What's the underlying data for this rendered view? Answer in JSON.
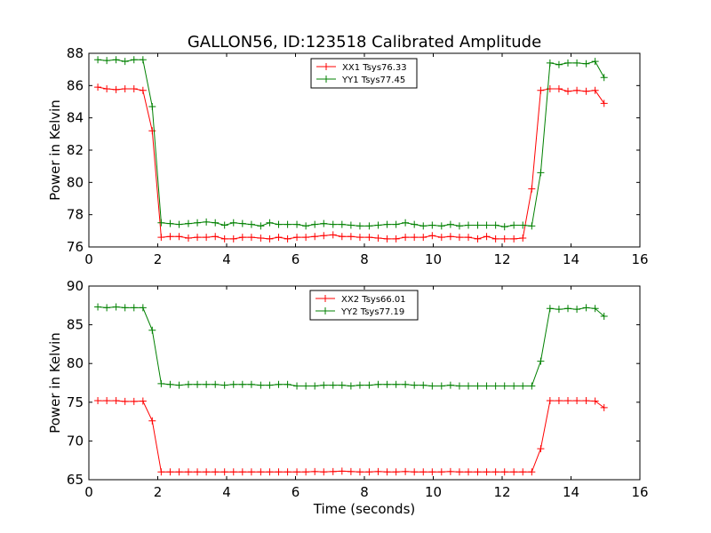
{
  "chart_data": [
    {
      "type": "line",
      "title": "GALLON56, ID:123518 Calibrated Amplitude",
      "xlabel": "",
      "ylabel": "Power in Kelvin",
      "xlim": [
        0,
        16
      ],
      "ylim": [
        76,
        88
      ],
      "xticks": [
        "0",
        "2",
        "4",
        "6",
        "8",
        "10",
        "12",
        "14",
        "16"
      ],
      "yticks": [
        "76",
        "78",
        "80",
        "82",
        "84",
        "86",
        "88"
      ],
      "legend_position": "top-center",
      "x": [
        0.26,
        0.52,
        0.79,
        1.05,
        1.31,
        1.57,
        1.84,
        2.1,
        2.36,
        2.62,
        2.89,
        3.15,
        3.41,
        3.67,
        3.94,
        4.2,
        4.46,
        4.72,
        4.99,
        5.25,
        5.51,
        5.77,
        6.04,
        6.3,
        6.56,
        6.82,
        7.09,
        7.35,
        7.61,
        7.87,
        8.14,
        8.4,
        8.66,
        8.92,
        9.19,
        9.45,
        9.71,
        9.97,
        10.24,
        10.5,
        10.76,
        11.02,
        11.29,
        11.55,
        11.81,
        12.07,
        12.34,
        12.6,
        12.86,
        13.12,
        13.39,
        13.65,
        13.91,
        14.17,
        14.44,
        14.7,
        14.96
      ],
      "series": [
        {
          "name": "XX1 Tsys76.33",
          "color": "#ff0000",
          "values": [
            85.9,
            85.8,
            85.75,
            85.8,
            85.8,
            85.7,
            83.2,
            76.6,
            76.65,
            76.65,
            76.55,
            76.6,
            76.6,
            76.65,
            76.5,
            76.5,
            76.6,
            76.6,
            76.55,
            76.5,
            76.6,
            76.5,
            76.6,
            76.6,
            76.65,
            76.7,
            76.75,
            76.65,
            76.65,
            76.6,
            76.6,
            76.55,
            76.5,
            76.5,
            76.6,
            76.6,
            76.6,
            76.7,
            76.6,
            76.65,
            76.6,
            76.6,
            76.5,
            76.65,
            76.5,
            76.5,
            76.5,
            76.55,
            79.6,
            85.7,
            85.8,
            85.8,
            85.65,
            85.7,
            85.65,
            85.7,
            84.9
          ]
        },
        {
          "name": "YY1 Tsys77.45",
          "color": "#008000",
          "values": [
            87.6,
            87.55,
            87.6,
            87.5,
            87.6,
            87.6,
            84.7,
            77.5,
            77.45,
            77.4,
            77.45,
            77.5,
            77.55,
            77.5,
            77.35,
            77.5,
            77.45,
            77.4,
            77.3,
            77.5,
            77.4,
            77.4,
            77.4,
            77.3,
            77.4,
            77.45,
            77.4,
            77.4,
            77.35,
            77.3,
            77.3,
            77.35,
            77.4,
            77.4,
            77.5,
            77.4,
            77.3,
            77.35,
            77.3,
            77.4,
            77.3,
            77.35,
            77.35,
            77.35,
            77.35,
            77.25,
            77.35,
            77.35,
            77.3,
            80.6,
            87.4,
            87.3,
            87.4,
            87.4,
            87.35,
            87.5,
            86.5
          ]
        }
      ]
    },
    {
      "type": "line",
      "title": "",
      "xlabel": "Time (seconds)",
      "ylabel": "Power in Kelvin",
      "xlim": [
        0,
        16
      ],
      "ylim": [
        65,
        90
      ],
      "xticks": [
        "0",
        "2",
        "4",
        "6",
        "8",
        "10",
        "12",
        "14",
        "16"
      ],
      "yticks": [
        "65",
        "70",
        "75",
        "80",
        "85",
        "90"
      ],
      "legend_position": "top-center",
      "x": [
        0.26,
        0.52,
        0.79,
        1.05,
        1.31,
        1.57,
        1.84,
        2.1,
        2.36,
        2.62,
        2.89,
        3.15,
        3.41,
        3.67,
        3.94,
        4.2,
        4.46,
        4.72,
        4.99,
        5.25,
        5.51,
        5.77,
        6.04,
        6.3,
        6.56,
        6.82,
        7.09,
        7.35,
        7.61,
        7.87,
        8.14,
        8.4,
        8.66,
        8.92,
        9.19,
        9.45,
        9.71,
        9.97,
        10.24,
        10.5,
        10.76,
        11.02,
        11.29,
        11.55,
        11.81,
        12.07,
        12.34,
        12.6,
        12.86,
        13.12,
        13.39,
        13.65,
        13.91,
        14.17,
        14.44,
        14.7,
        14.96
      ],
      "series": [
        {
          "name": "XX2 Tsys66.01",
          "color": "#ff0000",
          "values": [
            75.2,
            75.2,
            75.2,
            75.1,
            75.1,
            75.15,
            72.6,
            66.0,
            66.0,
            66.0,
            66.0,
            66.0,
            66.0,
            66.0,
            66.0,
            66.0,
            66.0,
            66.0,
            66.0,
            66.0,
            66.0,
            66.0,
            66.0,
            66.0,
            66.05,
            66.0,
            66.05,
            66.1,
            66.05,
            66.0,
            66.0,
            66.05,
            66.0,
            66.0,
            66.05,
            66.0,
            66.0,
            66.0,
            66.0,
            66.05,
            66.0,
            66.0,
            66.0,
            66.0,
            66.0,
            66.0,
            66.0,
            66.0,
            66.0,
            69.0,
            75.2,
            75.2,
            75.2,
            75.2,
            75.2,
            75.15,
            74.3
          ]
        },
        {
          "name": "YY2 Tsys77.19",
          "color": "#008000",
          "values": [
            87.3,
            87.2,
            87.3,
            87.2,
            87.2,
            87.2,
            84.3,
            77.4,
            77.3,
            77.2,
            77.3,
            77.3,
            77.3,
            77.3,
            77.2,
            77.3,
            77.3,
            77.3,
            77.2,
            77.2,
            77.3,
            77.3,
            77.1,
            77.1,
            77.1,
            77.2,
            77.2,
            77.2,
            77.1,
            77.2,
            77.2,
            77.3,
            77.3,
            77.3,
            77.3,
            77.2,
            77.2,
            77.1,
            77.1,
            77.2,
            77.1,
            77.1,
            77.1,
            77.1,
            77.1,
            77.1,
            77.1,
            77.1,
            77.1,
            80.3,
            87.1,
            87.0,
            87.1,
            87.0,
            87.2,
            87.1,
            86.1
          ]
        }
      ]
    }
  ]
}
